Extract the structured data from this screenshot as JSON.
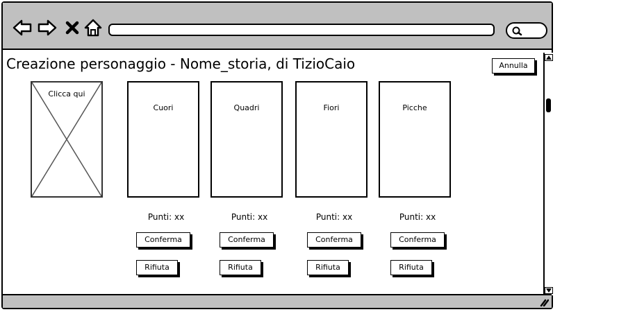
{
  "window": {
    "title": "Creazione personaggio - Nome_storia, di TizioCaio"
  },
  "toolbar": {
    "icons": [
      "arrow-left-icon",
      "arrow-right-icon",
      "close-icon",
      "home-icon",
      "search-icon"
    ],
    "address_value": ""
  },
  "header": {
    "cancel_label": "Annulla"
  },
  "placeholder": {
    "label": "Clicca qui"
  },
  "cards": [
    {
      "suit": "Cuori",
      "points": "Punti: xx",
      "confirm": "Conferma",
      "reject": "Rifiuta"
    },
    {
      "suit": "Quadri",
      "points": "Punti: xx",
      "confirm": "Conferma",
      "reject": "Rifiuta"
    },
    {
      "suit": "Fiori",
      "points": "Punti: xx",
      "confirm": "Conferma",
      "reject": "Rifiuta"
    },
    {
      "suit": "Picche",
      "points": "Punti: xx",
      "confirm": "Conferma",
      "reject": "Rifiuta"
    }
  ],
  "colors": {
    "chrome": "#c0c0c0",
    "border": "#000000",
    "background": "#ffffff"
  }
}
